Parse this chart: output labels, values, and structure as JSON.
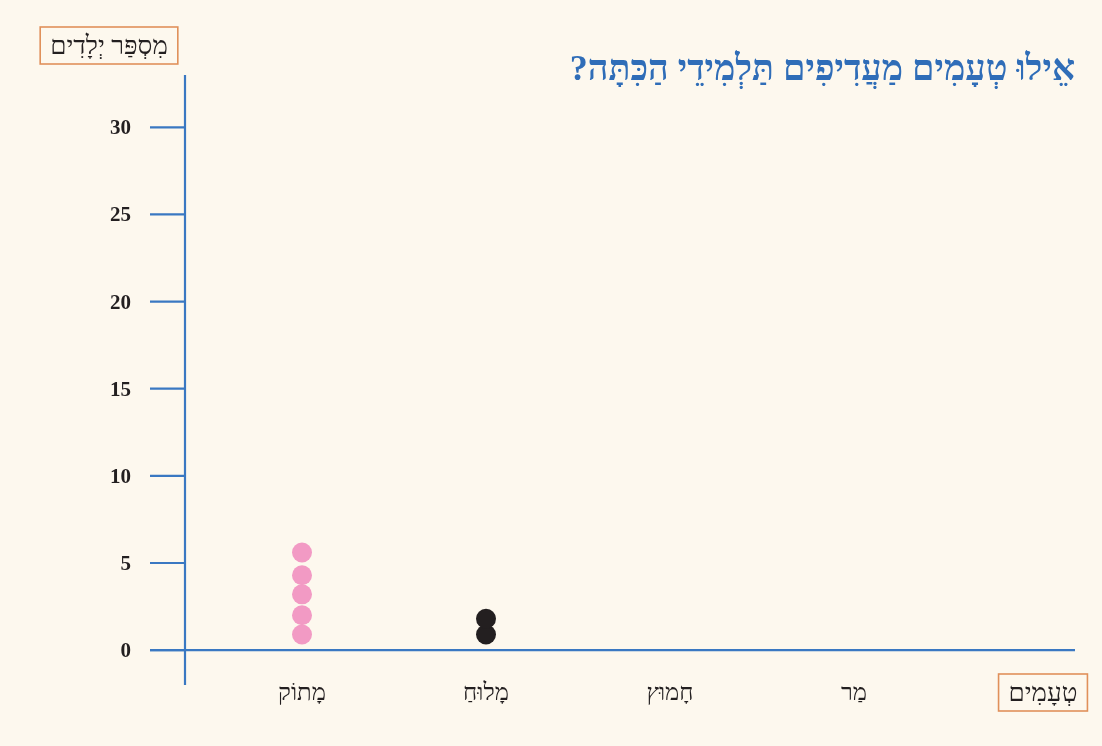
{
  "chart_data": {
    "type": "scatter",
    "title": "אֵילוּ טְעָמִים מַעֲדִיפִים תַּלְמִידֵי הַכִּתָּה?",
    "ylabel": "מִסְפַּר יְלָדִים",
    "xlabel": "טְעָמִים",
    "categories": [
      "מָתוֹק",
      "מָלוּחַ",
      "חָמוּץ",
      "מַר"
    ],
    "ylim": [
      -2,
      33
    ],
    "yticks": [
      0,
      5,
      10,
      15,
      20,
      25,
      30
    ],
    "marker": "circle",
    "grid": false,
    "series": [
      {
        "color": "#f29ac4",
        "x": [
          "מָתוֹק",
          "מָתוֹק",
          "מָתוֹק",
          "מָתוֹק",
          "מָתוֹק"
        ],
        "values": [
          0.9,
          2.0,
          3.2,
          4.3,
          5.6
        ]
      },
      {
        "color": "#231f20",
        "x": [
          "מָלוּחַ",
          "מָלוּחַ"
        ],
        "values": [
          0.9,
          1.8
        ]
      }
    ]
  }
}
